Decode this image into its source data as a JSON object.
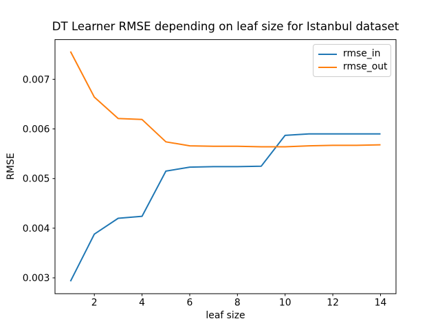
{
  "chart_data": {
    "type": "line",
    "title": "DT Learner RMSE depending on leaf size for Istanbul dataset",
    "xlabel": "leaf size",
    "ylabel": "RMSE",
    "x": [
      1,
      2,
      3,
      4,
      5,
      6,
      7,
      8,
      9,
      10,
      11,
      12,
      13,
      14
    ],
    "series": [
      {
        "name": "rmse_in",
        "color": "#1f77b4",
        "values": [
          0.00293,
          0.00388,
          0.0042,
          0.00424,
          0.00515,
          0.00523,
          0.00524,
          0.00524,
          0.00525,
          0.00587,
          0.0059,
          0.0059,
          0.0059,
          0.0059
        ]
      },
      {
        "name": "rmse_out",
        "color": "#ff7f0e",
        "values": [
          0.00756,
          0.00664,
          0.00621,
          0.00619,
          0.00574,
          0.00566,
          0.00565,
          0.00565,
          0.00564,
          0.00564,
          0.00566,
          0.00567,
          0.00567,
          0.00568
        ]
      }
    ],
    "xlim": [
      0.35,
      14.65
    ],
    "ylim": [
      0.00268,
      0.0078
    ],
    "xticks": {
      "values": [
        2,
        4,
        6,
        8,
        10,
        12,
        14
      ],
      "labels": [
        "2",
        "4",
        "6",
        "8",
        "10",
        "12",
        "14"
      ]
    },
    "yticks": {
      "values": [
        0.003,
        0.004,
        0.005,
        0.006,
        0.007
      ],
      "labels": [
        "0.003",
        "0.004",
        "0.005",
        "0.006",
        "0.007"
      ]
    },
    "grid": false,
    "legend_position": "upper right",
    "spine_color": "#000000",
    "background_color": "#ffffff"
  }
}
